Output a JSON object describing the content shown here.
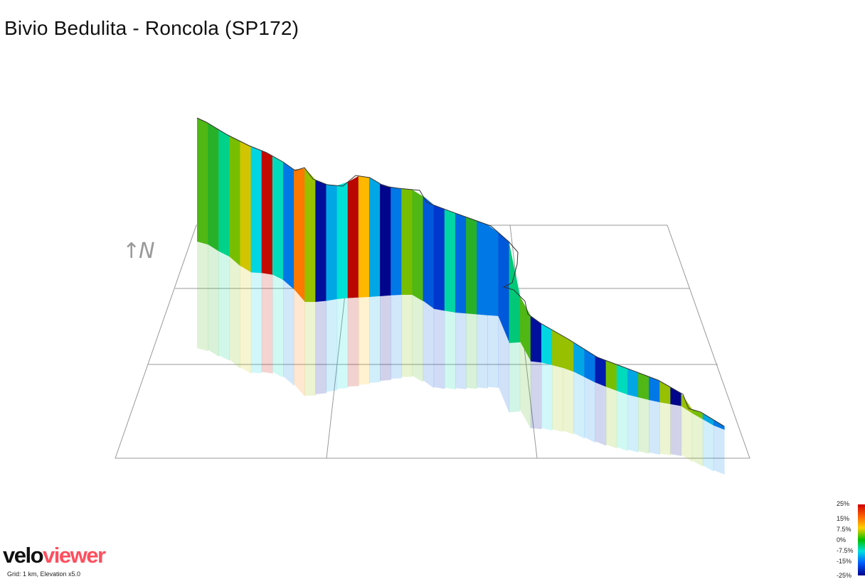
{
  "title": "Bivio Bedulita - Roncola (SP172)",
  "north_indicator": "↑N",
  "branding": {
    "logo_part1": "velo",
    "logo_part2": "viewer",
    "grid_note": "Grid: 1 km, Elevation x5.0"
  },
  "legend": {
    "labels": [
      "25%",
      "15%",
      "7.5%",
      "0%",
      "-7.5%",
      "-15%",
      "-25%"
    ]
  },
  "colors": {
    "steep_climb": "#c00000",
    "climb": "#ff8000",
    "gentle": "#00c000",
    "flat": "#00d0a0",
    "descent": "#00e0e0",
    "steep_descent": "#0050e0",
    "very_steep_descent": "#000090",
    "grid": "#999999"
  },
  "chart_data": {
    "type": "area",
    "title": "Bivio Bedulita - Roncola (SP172)",
    "xlabel": "",
    "ylabel": "",
    "grid": true,
    "grid_spacing_km": 1,
    "elevation_exaggeration": 5.0,
    "color_scale_percent": [
      25,
      15,
      7.5,
      0,
      -7.5,
      -15,
      -25
    ],
    "profile_gradients_percent": [
      2,
      1,
      -4,
      3,
      6,
      -8,
      20,
      -6,
      -12,
      10,
      4,
      -22,
      -10,
      -7,
      22,
      8,
      -10,
      -24,
      -12,
      3,
      2,
      -14,
      -16,
      -5,
      -13,
      1,
      -12,
      -12,
      -14,
      -3,
      2,
      -22,
      -8,
      4,
      4,
      -10,
      -12,
      -20,
      3,
      -6,
      -10,
      2,
      -12,
      4,
      -24,
      4,
      3,
      -10,
      -12
    ]
  }
}
